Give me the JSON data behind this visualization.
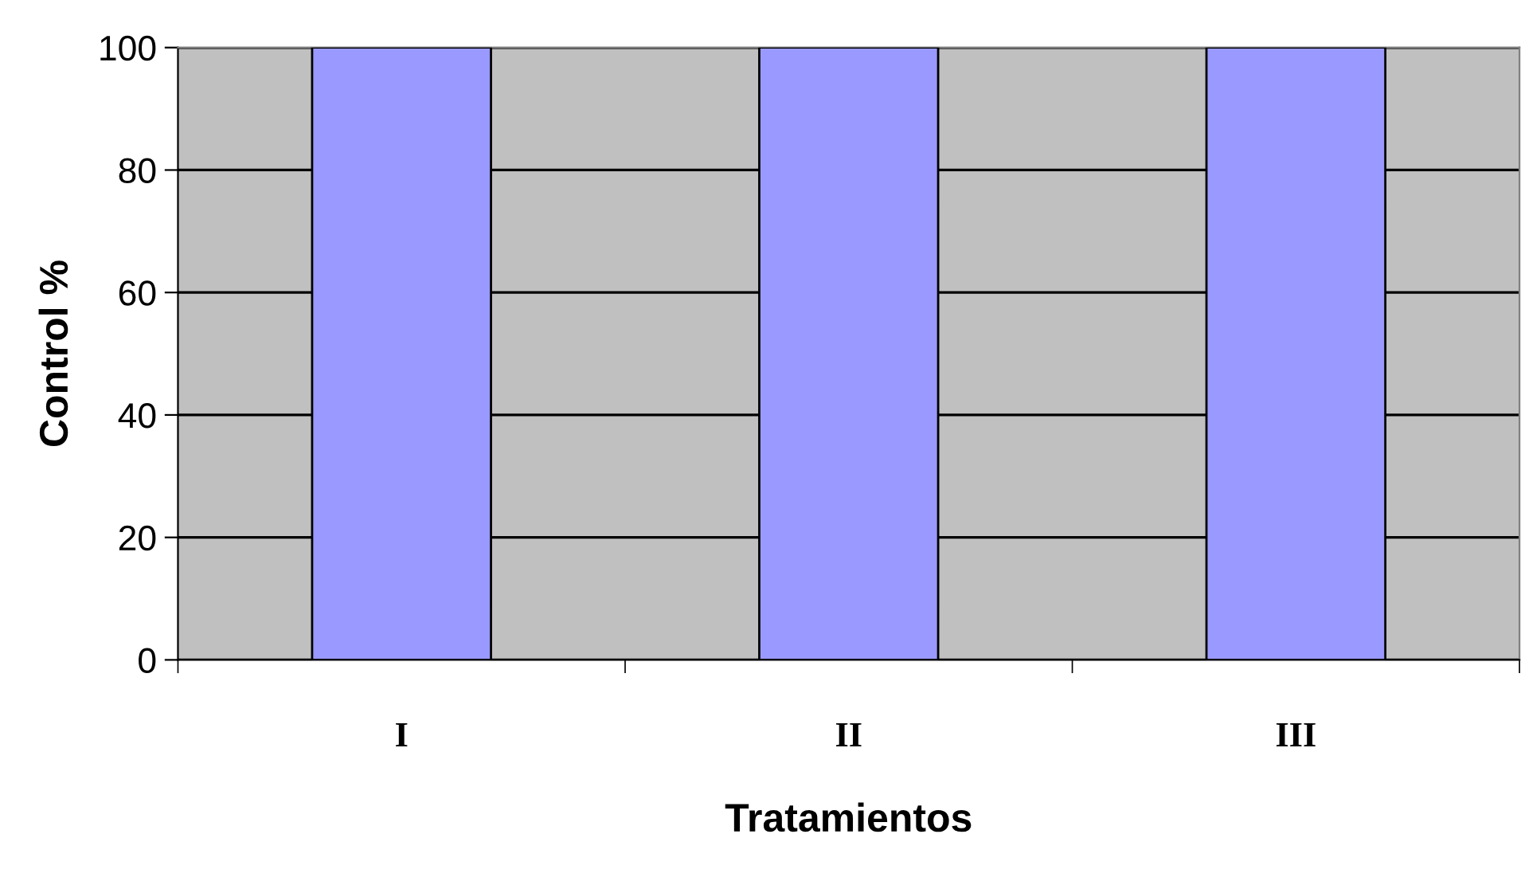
{
  "chart_data": {
    "type": "bar",
    "xlabel": "Tratamientos",
    "ylabel": "Control %",
    "categories": [
      "I",
      "II",
      "III"
    ],
    "series": [
      {
        "color": "#9999ff",
        "values": [
          100,
          100,
          100
        ]
      }
    ],
    "ylim": [
      0,
      100
    ],
    "yticks": [
      0,
      20,
      40,
      60,
      80,
      100
    ],
    "grid": "y",
    "legend": false
  }
}
